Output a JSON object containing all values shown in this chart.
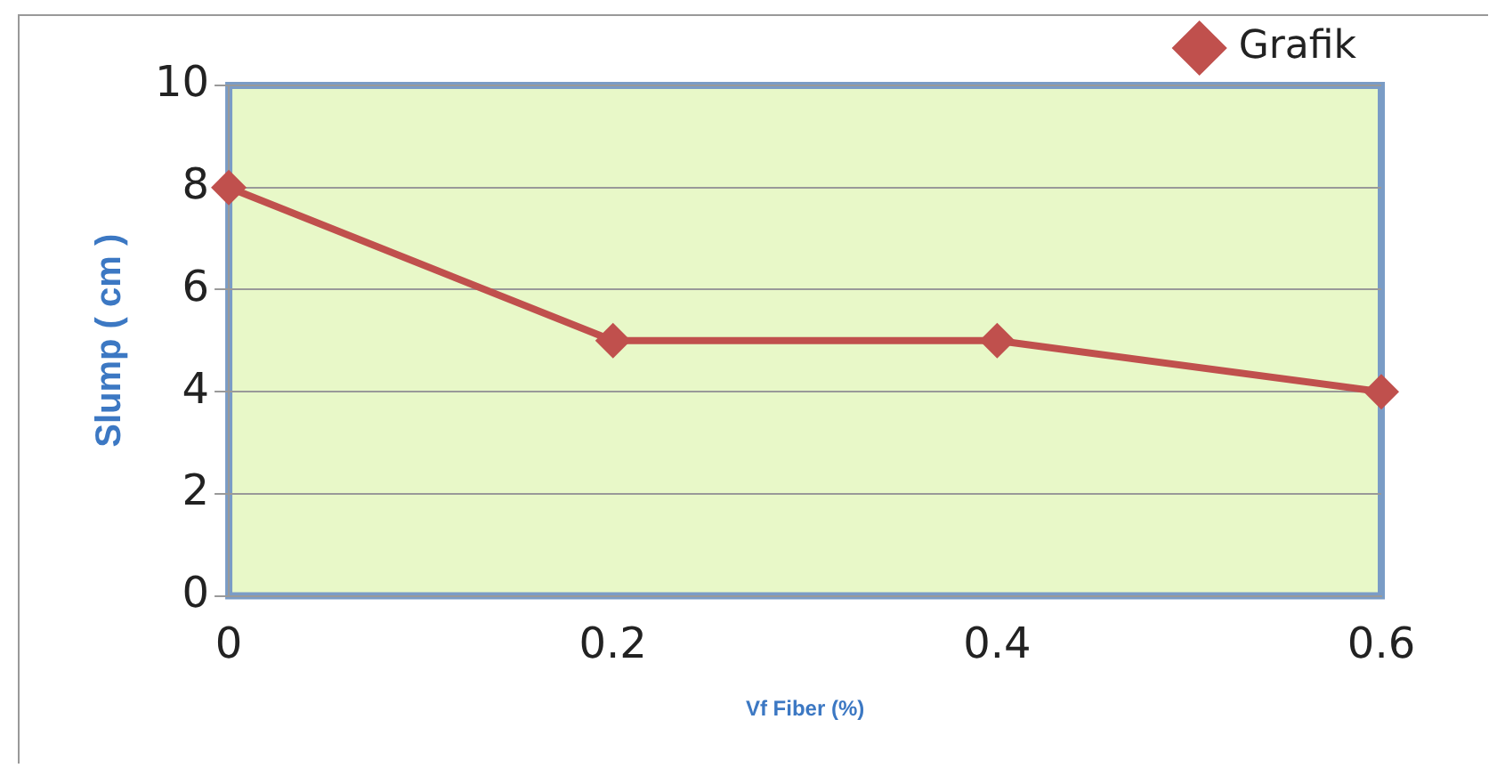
{
  "chart_data": {
    "type": "line",
    "xlabel": "Vf Fiber (%)",
    "ylabel": "Slump ( cm )",
    "x": [
      0,
      0.2,
      0.4,
      0.6
    ],
    "series": [
      {
        "name": "Grafik",
        "color": "#c0504d",
        "values": [
          8,
          5,
          5,
          4
        ]
      }
    ],
    "xlim": [
      0,
      0.6
    ],
    "xticks": [
      0,
      0.2,
      0.4,
      0.6
    ],
    "ylim": [
      0,
      10
    ],
    "yticks": [
      0,
      2,
      4,
      6,
      8,
      10
    ],
    "grid": "y",
    "legend": "top right",
    "marker": "diamond",
    "line_style": "solid"
  }
}
